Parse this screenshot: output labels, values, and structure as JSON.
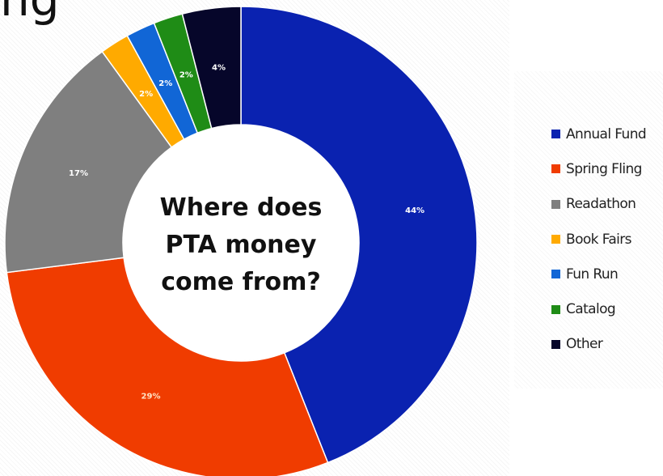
{
  "header": {
    "partial_title": "ng"
  },
  "chart_data": {
    "type": "donut",
    "center_text": [
      "Where does",
      "PTA money",
      "come from?"
    ],
    "series": [
      {
        "name": "Annual Fund",
        "value": 44,
        "label": "44%",
        "color": "#0a22b0"
      },
      {
        "name": "Spring Fling",
        "value": 29,
        "label": "29%",
        "color": "#f03c00"
      },
      {
        "name": "Readathon",
        "value": 17,
        "label": "17%",
        "color": "#7f7f7f"
      },
      {
        "name": "Book Fairs",
        "value": 2,
        "label": "2%",
        "color": "#ffaa00"
      },
      {
        "name": "Fun Run",
        "value": 2,
        "label": "2%",
        "color": "#1166d6"
      },
      {
        "name": "Catalog",
        "value": 2,
        "label": "2%",
        "color": "#1f8c16"
      },
      {
        "name": "Other",
        "value": 4,
        "label": "4%",
        "color": "#06062a"
      }
    ],
    "legend_position": "right"
  }
}
